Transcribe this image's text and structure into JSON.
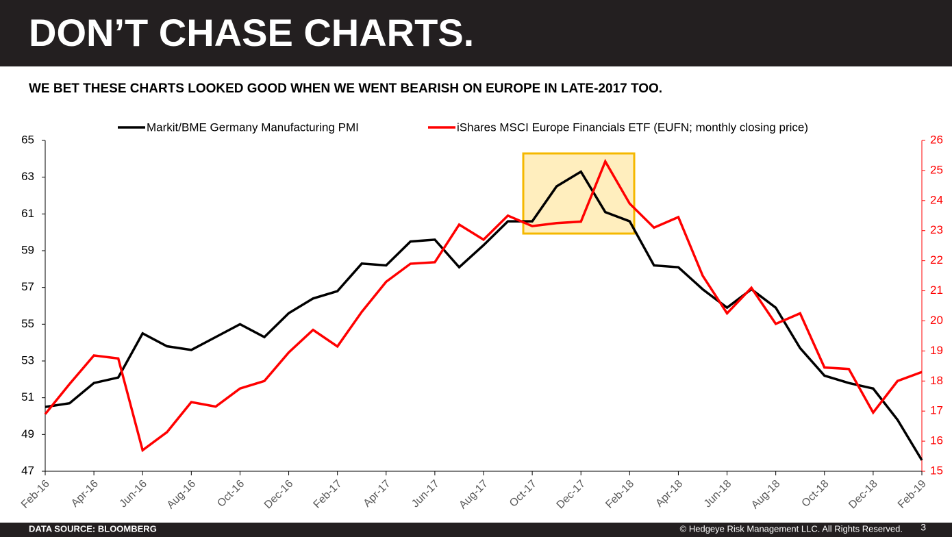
{
  "chart_data": {
    "type": "line",
    "title": "DON’T CHASE CHARTS.",
    "subtitle": "WE BET THESE CHARTS LOOKED GOOD WHEN WE WENT BEARISH ON EUROPE IN LATE-2017 TOO.",
    "categories": [
      "Feb-16",
      null,
      "Apr-16",
      null,
      "Jun-16",
      null,
      "Aug-16",
      null,
      "Oct-16",
      null,
      "Dec-16",
      null,
      "Feb-17",
      null,
      "Apr-17",
      null,
      "Jun-17",
      null,
      "Aug-17",
      null,
      "Oct-17",
      null,
      "Dec-17",
      null,
      "Feb-18",
      null,
      "Apr-18",
      null,
      "Jun-18",
      null,
      "Aug-18",
      null,
      "Oct-18",
      null,
      "Dec-18",
      null,
      "Feb-19"
    ],
    "series": [
      {
        "name": "Markit/BME Germany Manufacturing PMI",
        "color": "#000000",
        "axis": "y",
        "values": [
          50.5,
          50.7,
          51.8,
          52.1,
          54.5,
          53.8,
          53.6,
          54.3,
          55.0,
          54.3,
          55.6,
          56.4,
          56.8,
          58.3,
          58.2,
          59.5,
          59.6,
          58.1,
          59.3,
          60.6,
          60.6,
          62.5,
          63.3,
          61.1,
          60.6,
          58.2,
          58.1,
          56.9,
          55.9,
          56.9,
          55.9,
          53.7,
          52.2,
          51.8,
          51.5,
          49.8,
          47.6
        ]
      },
      {
        "name": "iShares MSCI Europe Financials ETF (EUFN; monthly closing price)",
        "color": "#ff0000",
        "axis": "y2",
        "values": [
          16.9,
          17.9,
          18.85,
          18.75,
          15.7,
          16.3,
          17.3,
          17.15,
          17.75,
          18.0,
          18.95,
          19.7,
          19.15,
          20.3,
          21.3,
          21.9,
          21.95,
          23.2,
          22.7,
          23.5,
          23.15,
          23.25,
          23.3,
          25.3,
          23.9,
          23.1,
          23.45,
          21.5,
          20.25,
          21.1,
          19.9,
          20.25,
          18.45,
          18.4,
          16.95,
          18.0,
          18.3
        ]
      }
    ],
    "ylim": [
      47,
      65
    ],
    "yticks": [
      47,
      49,
      51,
      53,
      55,
      57,
      59,
      61,
      63,
      65
    ],
    "y2lim": [
      15,
      26
    ],
    "y2ticks": [
      15,
      16,
      17,
      18,
      19,
      20,
      21,
      22,
      23,
      24,
      25,
      26
    ],
    "y2color": "#ff0000",
    "grid": false,
    "legend": "top"
  },
  "footer": {
    "source": "DATA SOURCE: BLOOMBERG",
    "copyright": "© Hedgeye Risk Management LLC. All Rights Reserved.",
    "page": "3"
  }
}
